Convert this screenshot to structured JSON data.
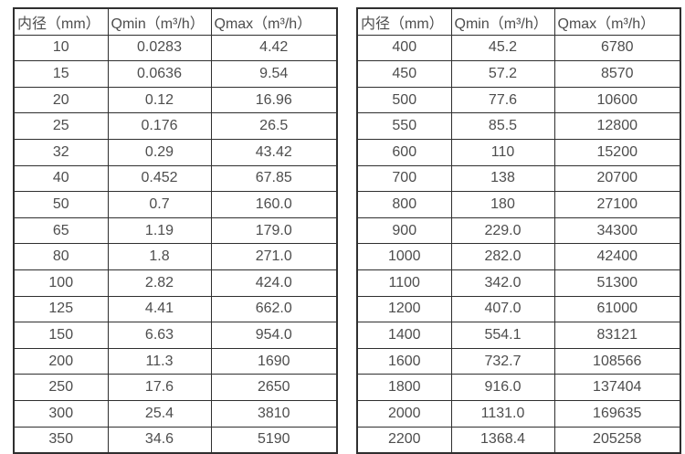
{
  "page": {
    "background_color": "#ffffff",
    "border_color": "#2f2f2f",
    "text_color": "#4d4d4d"
  },
  "chart_data": [
    {
      "type": "table",
      "title": "",
      "columns": [
        "内径（mm）",
        "Qmin（m³/h）",
        "Qmax（m³/h）"
      ],
      "rows": [
        [
          "10",
          "0.0283",
          "4.42"
        ],
        [
          "15",
          "0.0636",
          "9.54"
        ],
        [
          "20",
          "0.12",
          "16.96"
        ],
        [
          "25",
          "0.176",
          "26.5"
        ],
        [
          "32",
          "0.29",
          "43.42"
        ],
        [
          "40",
          "0.452",
          "67.85"
        ],
        [
          "50",
          "0.7",
          "160.0"
        ],
        [
          "65",
          "1.19",
          "179.0"
        ],
        [
          "80",
          "1.8",
          "271.0"
        ],
        [
          "100",
          "2.82",
          "424.0"
        ],
        [
          "125",
          "4.41",
          "662.0"
        ],
        [
          "150",
          "6.63",
          "954.0"
        ],
        [
          "200",
          "11.3",
          "1690"
        ],
        [
          "250",
          "17.6",
          "2650"
        ],
        [
          "300",
          "25.4",
          "3810"
        ],
        [
          "350",
          "34.6",
          "5190"
        ]
      ]
    },
    {
      "type": "table",
      "title": "",
      "columns": [
        "内径（mm）",
        "Qmin（m³/h）",
        "Qmax（m³/h）"
      ],
      "rows": [
        [
          "400",
          "45.2",
          "6780"
        ],
        [
          "450",
          "57.2",
          "8570"
        ],
        [
          "500",
          "77.6",
          "10600"
        ],
        [
          "550",
          "85.5",
          "12800"
        ],
        [
          "600",
          "110",
          "15200"
        ],
        [
          "700",
          "138",
          "20700"
        ],
        [
          "800",
          "180",
          "27100"
        ],
        [
          "900",
          "229.0",
          "34300"
        ],
        [
          "1000",
          "282.0",
          "42400"
        ],
        [
          "1100",
          "342.0",
          "51300"
        ],
        [
          "1200",
          "407.0",
          "61000"
        ],
        [
          "1400",
          "554.1",
          "83121"
        ],
        [
          "1600",
          "732.7",
          "108566"
        ],
        [
          "1800",
          "916.0",
          "137404"
        ],
        [
          "2000",
          "1131.0",
          "169635"
        ],
        [
          "2200",
          "1368.4",
          "205258"
        ]
      ]
    }
  ]
}
